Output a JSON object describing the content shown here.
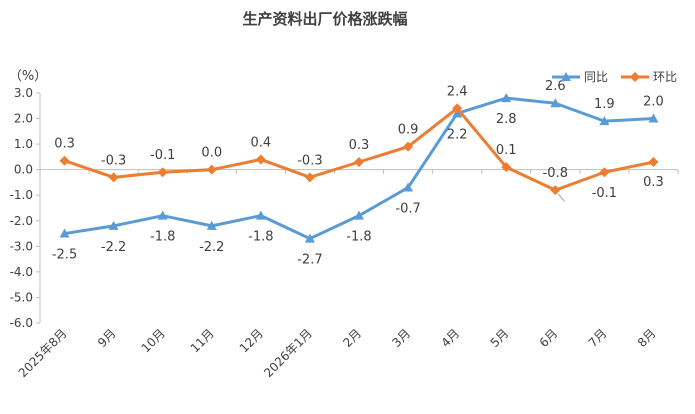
{
  "chart_data": {
    "type": "line",
    "title": "生产资料出厂价格涨跌幅",
    "unit_label": "（%）",
    "categories": [
      "2025年8月",
      "9月",
      "10月",
      "11月",
      "12月",
      "2026年1月",
      "2月",
      "3月",
      "4月",
      "5月",
      "6月",
      "7月",
      "8月"
    ],
    "series": [
      {
        "name": "同比",
        "color": "#5b9bd5",
        "marker": "triangle",
        "values": [
          -2.5,
          -2.2,
          -1.8,
          -2.2,
          -1.8,
          -2.7,
          -1.8,
          -0.7,
          2.2,
          2.8,
          2.6,
          1.9,
          2.0
        ],
        "labels": [
          "-2.5",
          "-2.2",
          "-1.8",
          "-2.2",
          "-1.8",
          "-2.7",
          "-1.8",
          "-0.7",
          "2.2",
          "2.8",
          "2.6",
          "1.9",
          "2.0"
        ]
      },
      {
        "name": "环比",
        "color": "#ed7d31",
        "marker": "diamond",
        "values": [
          0.35,
          -0.3,
          -0.1,
          0.0,
          0.4,
          -0.3,
          0.3,
          0.9,
          2.4,
          0.1,
          -0.8,
          -0.1,
          0.3
        ],
        "labels": [
          "0.3",
          "-0.3",
          "-0.1",
          "0.0",
          "0.4",
          "-0.3",
          "0.3",
          "0.9",
          "2.4",
          "0.1",
          "-0.8",
          "-0.1",
          "0.3"
        ]
      }
    ],
    "ylim": [
      -6.0,
      3.0
    ],
    "yticks": [
      "3.0",
      "2.0",
      "1.0",
      "0.0",
      "-1.0",
      "-2.0",
      "-3.0",
      "-4.0",
      "-5.0",
      "-6.0"
    ],
    "legend_position": "top-right",
    "grid": false
  }
}
